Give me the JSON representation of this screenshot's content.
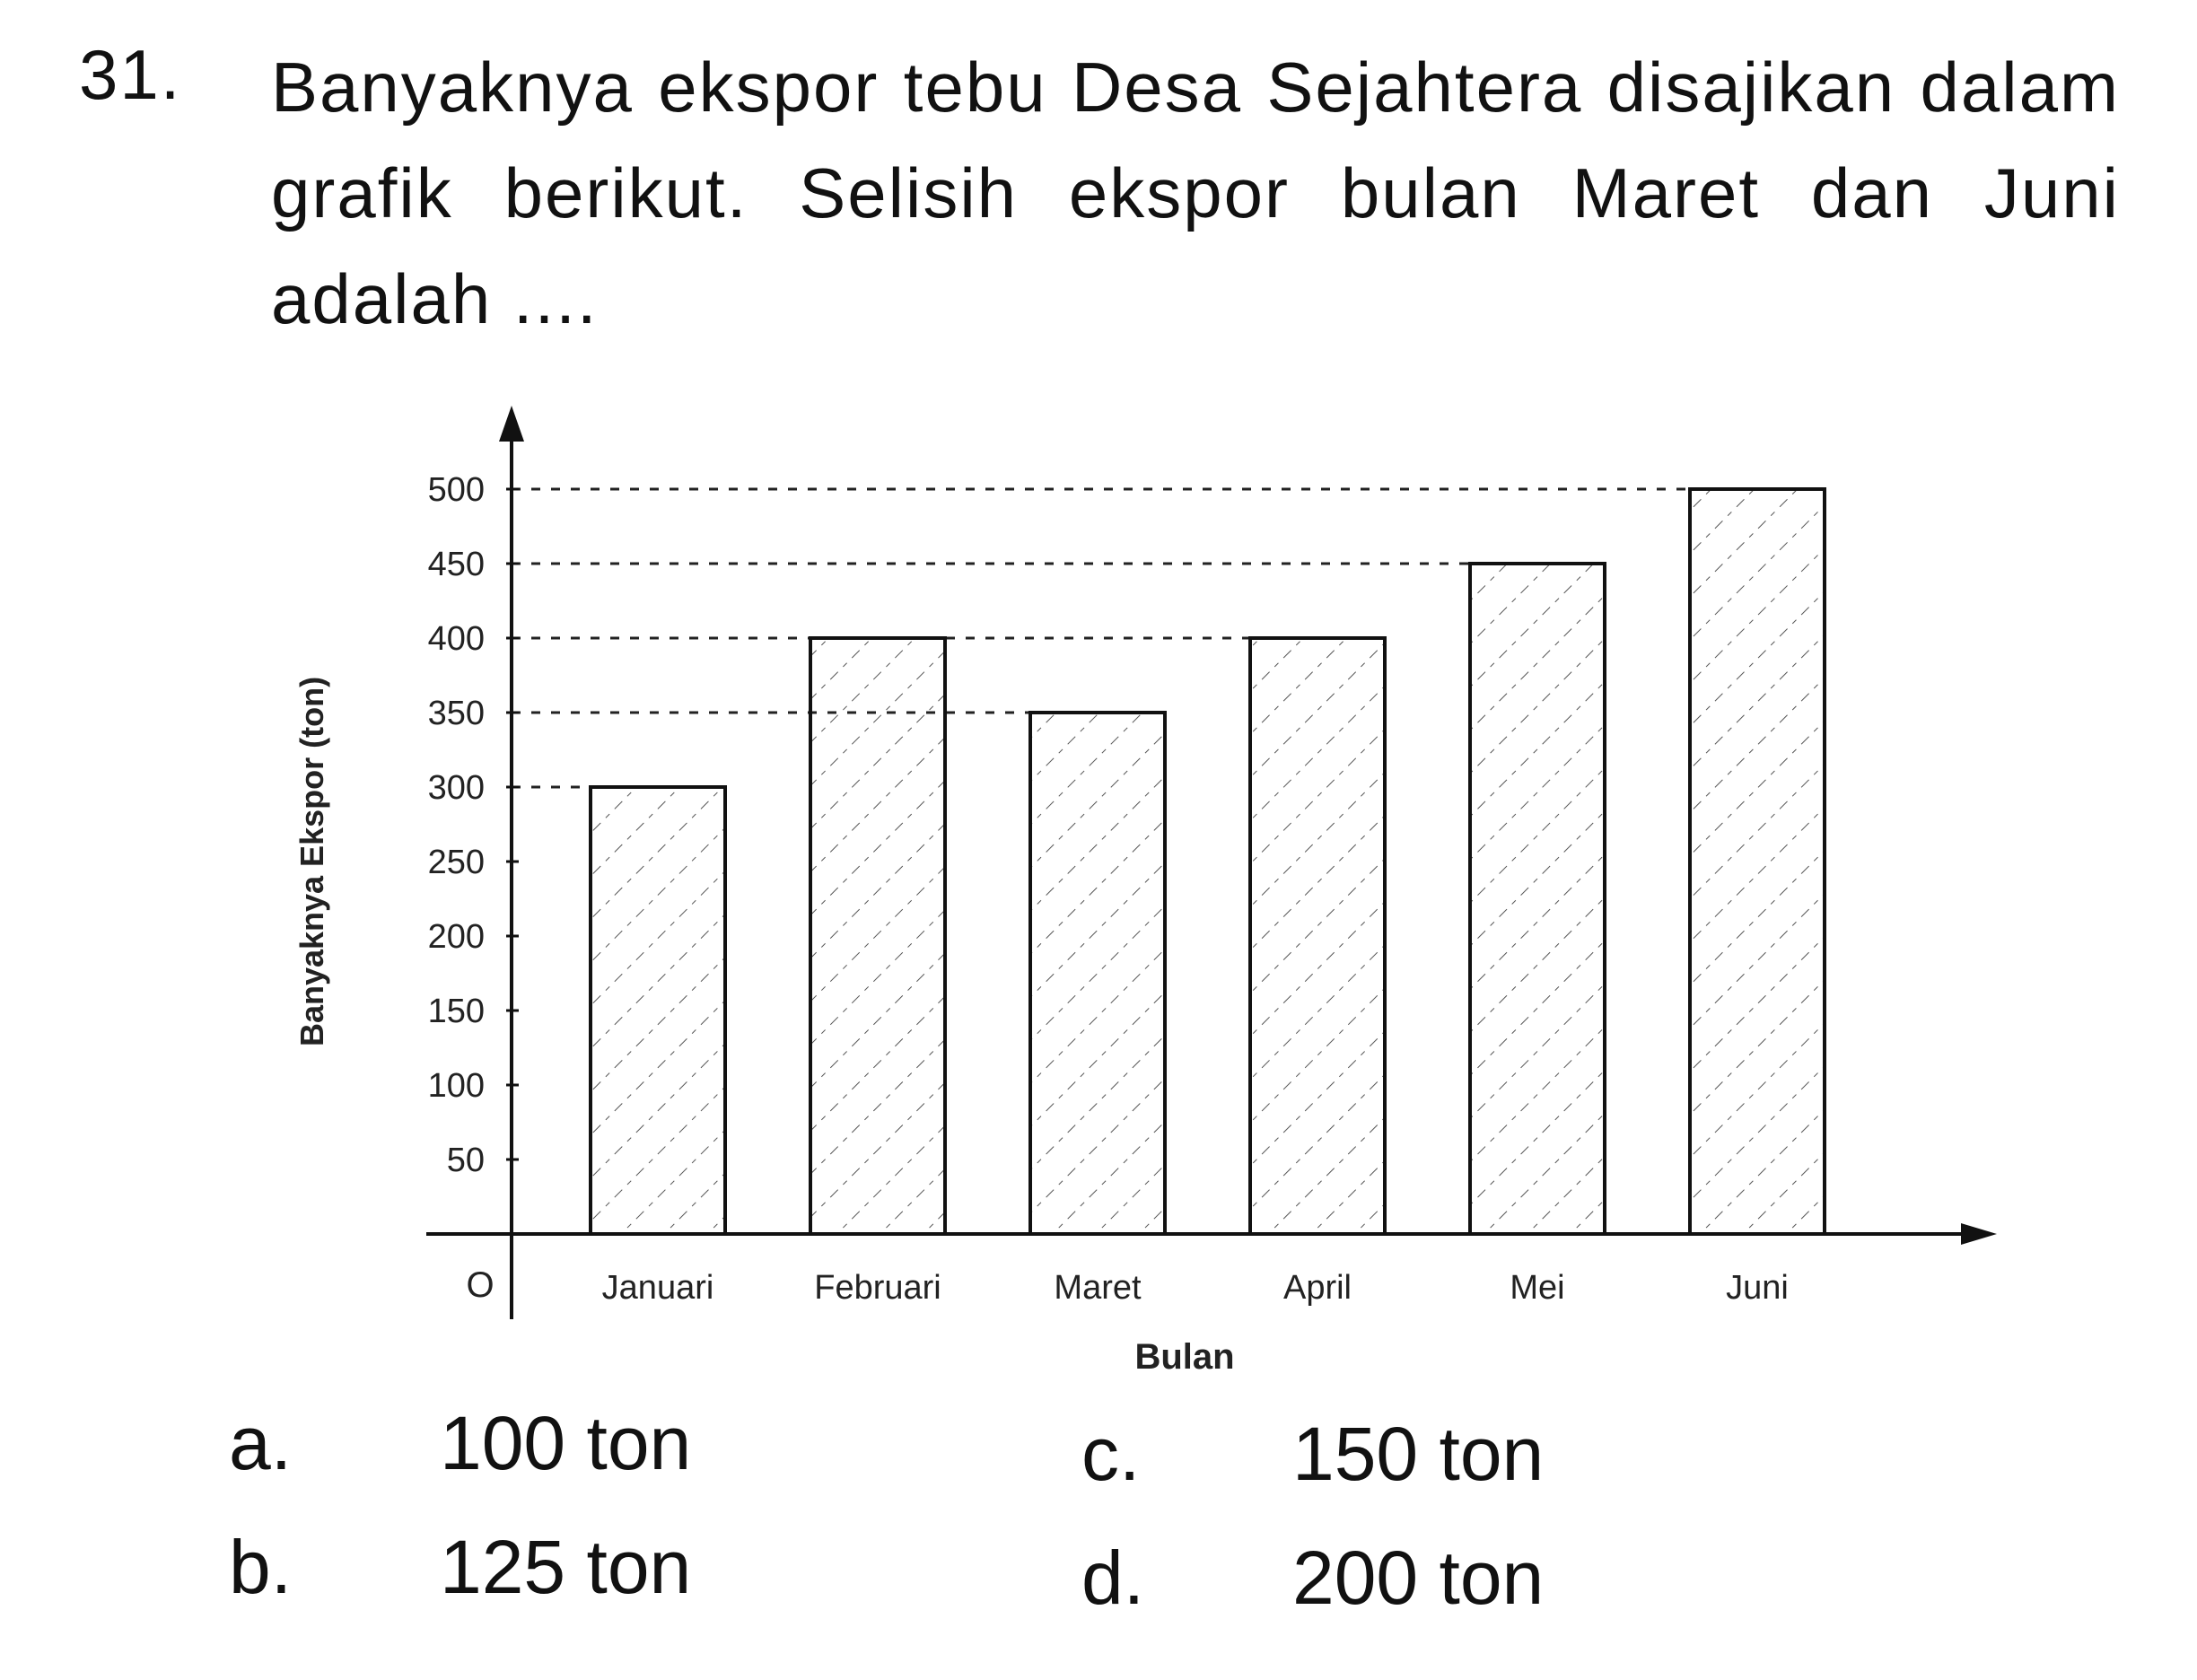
{
  "question": {
    "number": "31.",
    "text": "Banyaknya ekspor tebu Desa Sejahtera disajikan dalam grafik berikut. Selisih ekspor bulan Maret dan Juni adalah ...."
  },
  "chart_data": {
    "type": "bar",
    "categories": [
      "Januari",
      "Februari",
      "Maret",
      "April",
      "Mei",
      "Juni"
    ],
    "values": [
      300,
      400,
      350,
      400,
      450,
      500
    ],
    "yticks": [
      "O",
      "50",
      "100",
      "150",
      "200",
      "250",
      "300",
      "350",
      "400",
      "450",
      "500"
    ],
    "ylabel": "Banyaknya Ekspor (ton)",
    "xlabel": "Bulan",
    "ylim": [
      0,
      500
    ],
    "origin_label": "O",
    "bar_fill": "hatched",
    "guide_lines": "dashed"
  },
  "options": [
    {
      "letter": "a.",
      "value": "100 ton"
    },
    {
      "letter": "b.",
      "value": "125 ton"
    },
    {
      "letter": "c.",
      "value": "150 ton"
    },
    {
      "letter": "d.",
      "value": "200 ton"
    }
  ]
}
